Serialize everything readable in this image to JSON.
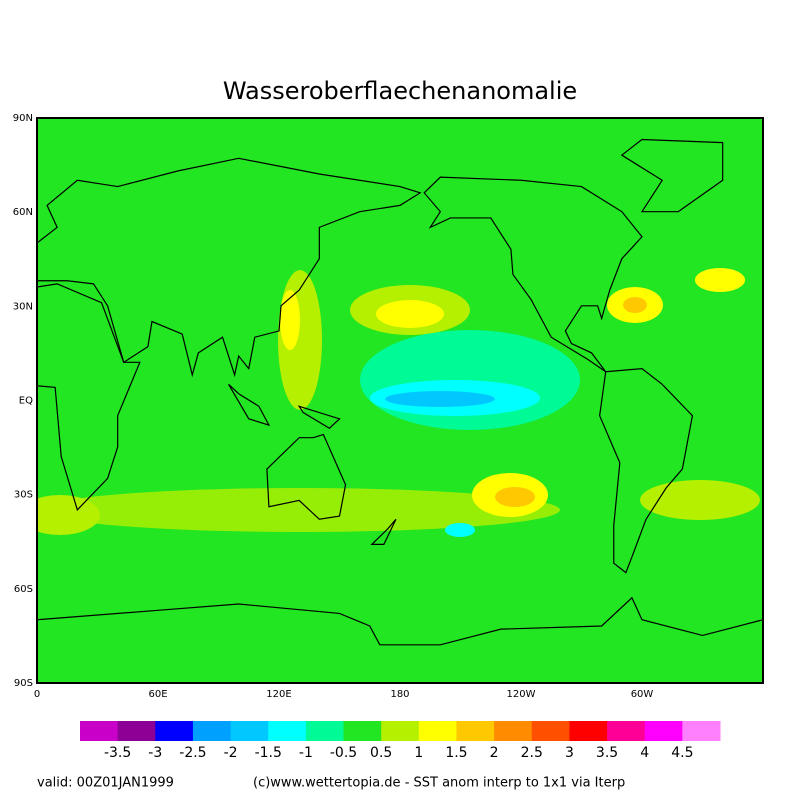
{
  "title": "Wasseroberflaechenanomalie",
  "lat_labels": [
    "90N",
    "60N",
    "30N",
    "EQ",
    "30S",
    "60S",
    "90S"
  ],
  "lon_labels": [
    "0",
    "60E",
    "120E",
    "180",
    "120W",
    "60W"
  ],
  "colorbar": {
    "colors": [
      "#c800c8",
      "#8c0096",
      "#0000ff",
      "#00a0ff",
      "#00c8ff",
      "#00ffff",
      "#00fa96",
      "#22e622",
      "#b4f000",
      "#ffff00",
      "#ffc800",
      "#ff8c00",
      "#ff5000",
      "#ff0000",
      "#ff0096",
      "#ff00ff",
      "#ff80ff"
    ],
    "labels": [
      "-3.5",
      "-3",
      "-2.5",
      "-2",
      "-1.5",
      "-1",
      "-0.5",
      "0.5",
      "1",
      "1.5",
      "2",
      "2.5",
      "3",
      "3.5",
      "4",
      "4.5"
    ]
  },
  "footer": {
    "valid": "valid: 00Z01JAN1999",
    "credit": "(c)www.wettertopia.de - SST anom interp to 1x1 via Iterp"
  }
}
